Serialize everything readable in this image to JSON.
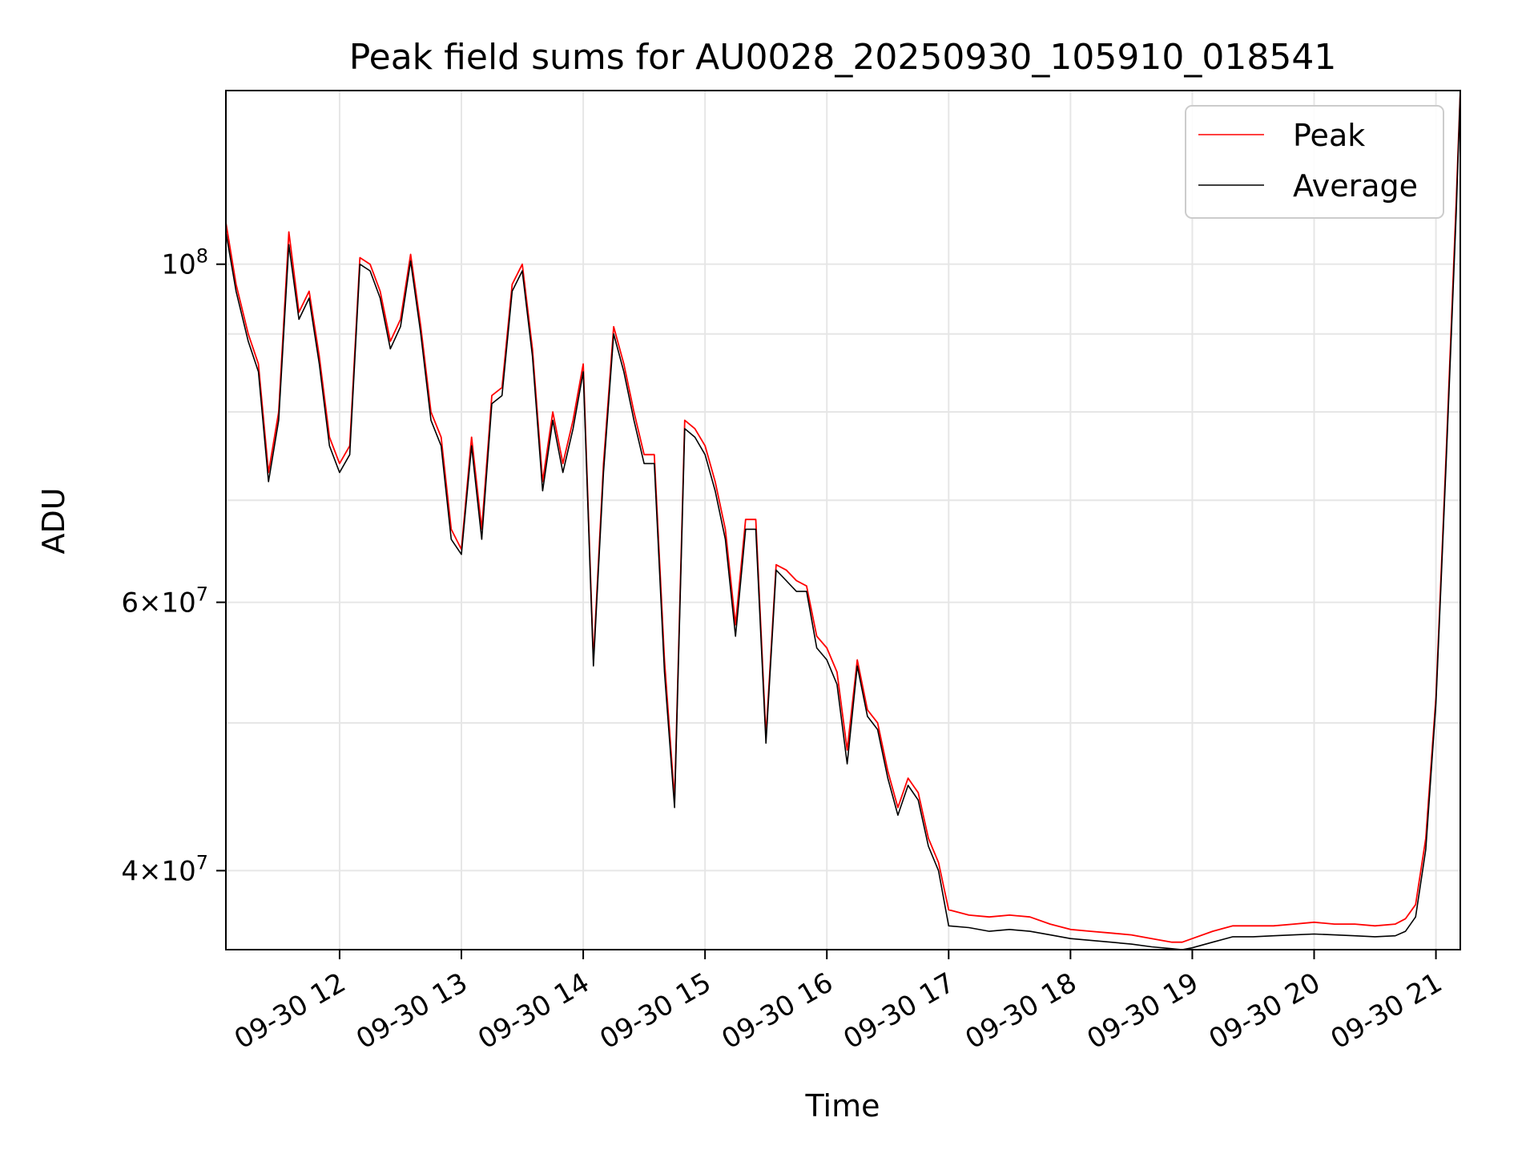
{
  "chart_data": {
    "type": "line",
    "title": "Peak field sums for AU0028_20250930_105910_018541",
    "xlabel": "Time",
    "ylabel": "ADU",
    "y_scale": "log",
    "xlim": [
      "2025-09-30 11:04",
      "2025-09-30 21:12"
    ],
    "ylim": [
      35500000,
      130000000
    ],
    "grid": true,
    "legend_position": "top-right",
    "x_tick_labels": [
      "09-30 12",
      "09-30 13",
      "09-30 14",
      "09-30 15",
      "09-30 16",
      "09-30 17",
      "09-30 18",
      "09-30 19",
      "09-30 20",
      "09-30 21"
    ],
    "y_tick_labels": [
      {
        "value": 100000000,
        "mantissa": "",
        "base": "10",
        "exp": "8"
      },
      {
        "value": 60000000,
        "mantissa": "6",
        "base": "10",
        "exp": "7"
      },
      {
        "value": 40000000,
        "mantissa": "4",
        "base": "10",
        "exp": "7"
      }
    ],
    "x": [
      "11:04",
      "11:09",
      "11:15",
      "11:20",
      "11:25",
      "11:30",
      "11:35",
      "11:40",
      "11:45",
      "11:50",
      "11:55",
      "12:00",
      "12:05",
      "12:10",
      "12:15",
      "12:20",
      "12:25",
      "12:30",
      "12:35",
      "12:40",
      "12:45",
      "12:50",
      "12:55",
      "13:00",
      "13:05",
      "13:10",
      "13:15",
      "13:20",
      "13:25",
      "13:30",
      "13:35",
      "13:40",
      "13:45",
      "13:50",
      "13:55",
      "14:00",
      "14:05",
      "14:10",
      "14:15",
      "14:20",
      "14:25",
      "14:30",
      "14:35",
      "14:40",
      "14:45",
      "14:50",
      "14:55",
      "15:00",
      "15:05",
      "15:10",
      "15:15",
      "15:20",
      "15:25",
      "15:30",
      "15:35",
      "15:40",
      "15:45",
      "15:50",
      "15:55",
      "16:00",
      "16:05",
      "16:10",
      "16:15",
      "16:20",
      "16:25",
      "16:30",
      "16:35",
      "16:40",
      "16:45",
      "16:50",
      "16:55",
      "17:00",
      "17:10",
      "17:20",
      "17:30",
      "17:40",
      "17:50",
      "18:00",
      "18:10",
      "18:20",
      "18:30",
      "18:40",
      "18:50",
      "18:55",
      "19:00",
      "19:10",
      "19:20",
      "19:30",
      "19:40",
      "19:50",
      "20:00",
      "20:10",
      "20:20",
      "20:30",
      "20:40",
      "20:45",
      "20:50",
      "20:55",
      "21:00",
      "21:05",
      "21:10",
      "21:12"
    ],
    "series": [
      {
        "name": "Peak",
        "color": "#ff0000",
        "values": [
          106500000,
          97000000,
          90000000,
          86000000,
          73000000,
          80000000,
          105000000,
          93000000,
          96000000,
          87000000,
          77000000,
          74000000,
          76000000,
          101000000,
          100000000,
          96000000,
          89000000,
          92000000,
          101500000,
          91000000,
          80000000,
          77000000,
          67000000,
          65000000,
          77000000,
          67000000,
          82000000,
          83000000,
          97000000,
          100000000,
          88000000,
          72000000,
          80000000,
          74000000,
          79000000,
          86000000,
          55000000,
          74000000,
          91000000,
          86000000,
          80000000,
          75000000,
          75000000,
          55000000,
          44500000,
          79000000,
          78000000,
          76000000,
          72000000,
          67000000,
          58000000,
          68000000,
          68000000,
          49000000,
          63500000,
          63000000,
          62000000,
          61500000,
          57000000,
          56000000,
          54000000,
          48000000,
          55000000,
          51000000,
          50000000,
          46500000,
          44000000,
          46000000,
          45000000,
          42000000,
          40500000,
          37700000,
          37400000,
          37300000,
          37400000,
          37300000,
          36900000,
          36600000,
          36500000,
          36400000,
          36300000,
          36100000,
          35900000,
          35900000,
          36100000,
          36500000,
          36800000,
          36800000,
          36800000,
          36900000,
          37000000,
          36900000,
          36900000,
          36800000,
          36900000,
          37200000,
          38000000,
          42000000,
          52000000,
          75000000,
          110000000,
          130000000
        ]
      },
      {
        "name": "Average",
        "color": "#000000",
        "values": [
          105000000,
          96000000,
          89000000,
          85000000,
          72000000,
          79000000,
          103000000,
          92000000,
          95000000,
          86000000,
          76000000,
          73000000,
          75000000,
          100000000,
          99000000,
          95000000,
          88000000,
          91000000,
          100500000,
          90000000,
          79000000,
          76000000,
          66000000,
          64500000,
          76000000,
          66000000,
          81000000,
          82000000,
          96000000,
          99000000,
          87000000,
          71000000,
          79000000,
          73000000,
          78000000,
          85000000,
          54500000,
          73000000,
          90000000,
          85000000,
          79000000,
          74000000,
          74000000,
          54000000,
          44000000,
          78000000,
          77000000,
          75000000,
          71000000,
          66000000,
          57000000,
          67000000,
          67000000,
          48500000,
          63000000,
          62000000,
          61000000,
          61000000,
          56000000,
          55000000,
          53000000,
          47000000,
          54500000,
          50500000,
          49500000,
          46000000,
          43500000,
          45500000,
          44500000,
          41500000,
          40000000,
          36800000,
          36700000,
          36500000,
          36600000,
          36500000,
          36300000,
          36100000,
          36000000,
          35900000,
          35800000,
          35650000,
          35550000,
          35500000,
          35600000,
          35900000,
          36200000,
          36200000,
          36250000,
          36300000,
          36350000,
          36300000,
          36250000,
          36200000,
          36250000,
          36500000,
          37300000,
          41300000,
          51500000,
          74000000,
          108000000,
          130000000
        ]
      }
    ]
  }
}
